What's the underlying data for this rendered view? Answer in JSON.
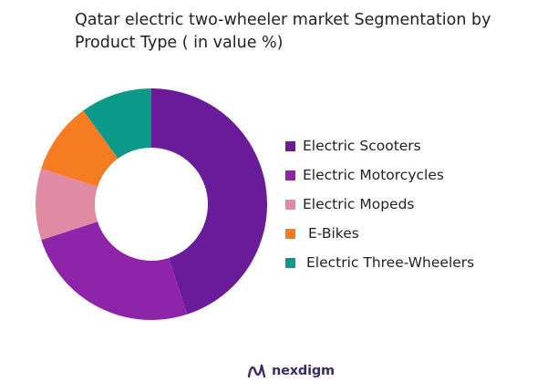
{
  "chart_data": {
    "type": "pie",
    "title_lines": [
      "Qatar electric two-wheeler market Segmentation by",
      "Product Type ( in value %)"
    ],
    "categories": [
      "Electric Scooters",
      "Electric Motorcycles",
      "Electric Mopeds",
      "E-Bikes",
      "Electric Three-Wheelers"
    ],
    "values": [
      45,
      25,
      10,
      10,
      10
    ],
    "colors": [
      "#6a1b9a",
      "#8e24aa",
      "#df8ba4",
      "#f57c20",
      "#0b9a8a"
    ],
    "donut": true,
    "legend_position": "right"
  },
  "branding": {
    "logo_text": "nexdigm",
    "logo_icon": "nexdigm-wave-icon",
    "logo_color": "#3b2d63"
  }
}
